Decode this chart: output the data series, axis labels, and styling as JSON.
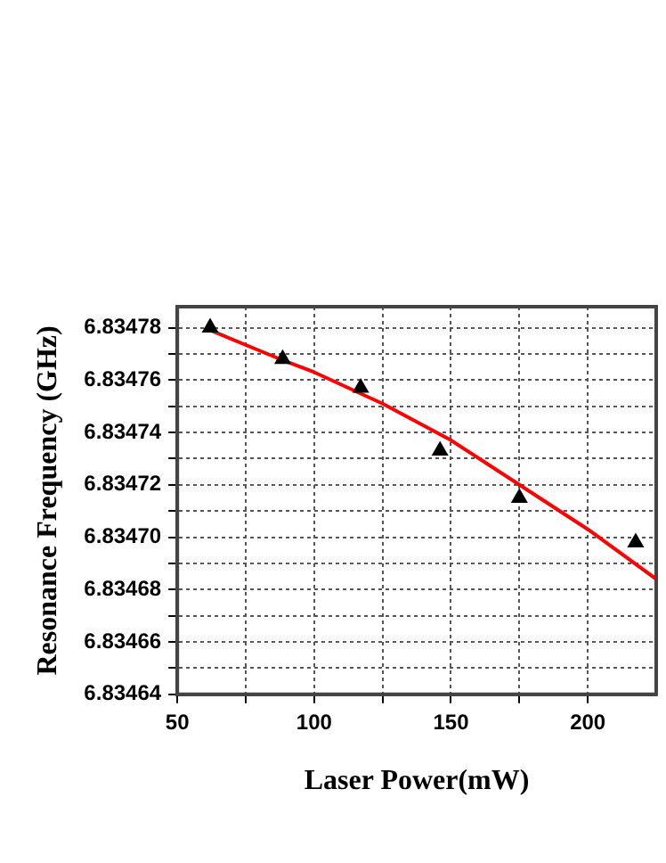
{
  "chart_data": {
    "type": "scatter",
    "xlabel": "Laser Power(mW)",
    "ylabel": "Resonance Frequency (GHz)",
    "xlim": [
      50,
      225
    ],
    "ylim": [
      6.83464,
      6.834788
    ],
    "xticks": [
      50,
      {
        "value": 75,
        "label": null
      },
      100,
      {
        "value": 125,
        "label": null
      },
      150,
      {
        "value": 175,
        "label": null
      },
      200
    ],
    "yticks": [
      6.83464,
      {
        "value": 6.83465,
        "label": null
      },
      6.83466,
      {
        "value": 6.83467,
        "label": null
      },
      6.83468,
      {
        "value": 6.83469,
        "label": null
      },
      {
        "value": 6.8347,
        "label": "6.83470"
      },
      {
        "value": 6.83471,
        "label": null
      },
      6.83472,
      {
        "value": 6.83473,
        "label": null
      },
      6.83474,
      {
        "value": 6.83475,
        "label": null
      },
      6.83476,
      {
        "value": 6.83477,
        "label": null
      },
      6.83478
    ],
    "grid": true,
    "legend": false,
    "marker": "triangle",
    "series": [
      {
        "color": "#000000",
        "x": [
          62,
          88.5,
          117,
          146,
          175,
          217.5
        ],
        "values": [
          6.83478,
          6.834768,
          6.834757,
          6.834733,
          6.834715,
          6.834698
        ]
      },
      {
        "type": "line",
        "color": "#ff0000",
        "marker": "none",
        "x": [
          62,
          87.5,
          100,
          125,
          150,
          175,
          200,
          225
        ],
        "values": [
          6.834779,
          6.834768,
          6.834763,
          6.834751,
          6.834737,
          6.83472,
          6.834703,
          6.834684
        ]
      }
    ]
  }
}
